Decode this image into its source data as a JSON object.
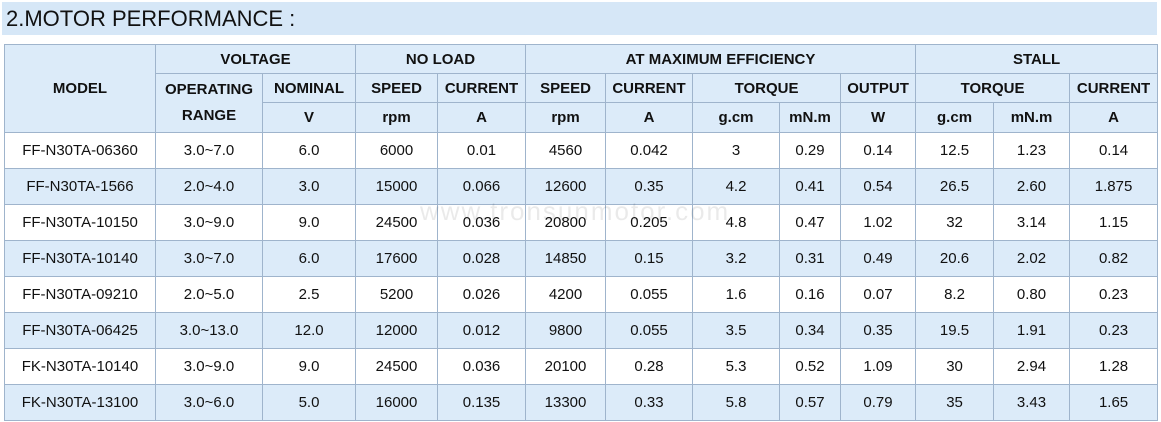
{
  "header": {
    "title": "2.MOTOR PERFORMANCE :"
  },
  "watermark": "www.tronsunmotor.com",
  "table": {
    "group_headers": [
      "MODEL",
      "VOLTAGE",
      "NO LOAD",
      "AT MAXIMUM EFFICIENCY",
      "STALL"
    ],
    "column_headers": [
      "OPERATING RANGE",
      "NOMINAL",
      "SPEED",
      "CURRENT",
      "SPEED",
      "CURRENT",
      "TORQUE",
      "OUTPUT",
      "TORQUE",
      "CURRENT"
    ],
    "units": [
      "V",
      "rpm",
      "A",
      "rpm",
      "A",
      "g.cm",
      "mN.m",
      "W",
      "g.cm",
      "mN.m",
      "A"
    ],
    "rows": [
      [
        "FF-N30TA-06360",
        "3.0~7.0",
        "6.0",
        "6000",
        "0.01",
        "4560",
        "0.042",
        "3",
        "0.29",
        "0.14",
        "12.5",
        "1.23",
        "0.14"
      ],
      [
        "FF-N30TA-1566",
        "2.0~4.0",
        "3.0",
        "15000",
        "0.066",
        "12600",
        "0.35",
        "4.2",
        "0.41",
        "0.54",
        "26.5",
        "2.60",
        "1.875"
      ],
      [
        "FF-N30TA-10150",
        "3.0~9.0",
        "9.0",
        "24500",
        "0.036",
        "20800",
        "0.205",
        "4.8",
        "0.47",
        "1.02",
        "32",
        "3.14",
        "1.15"
      ],
      [
        "FF-N30TA-10140",
        "3.0~7.0",
        "6.0",
        "17600",
        "0.028",
        "14850",
        "0.15",
        "3.2",
        "0.31",
        "0.49",
        "20.6",
        "2.02",
        "0.82"
      ],
      [
        "FF-N30TA-09210",
        "2.0~5.0",
        "2.5",
        "5200",
        "0.026",
        "4200",
        "0.055",
        "1.6",
        "0.16",
        "0.07",
        "8.2",
        "0.80",
        "0.23"
      ],
      [
        "FF-N30TA-06425",
        "3.0~13.0",
        "12.0",
        "12000",
        "0.012",
        "9800",
        "0.055",
        "3.5",
        "0.34",
        "0.35",
        "19.5",
        "1.91",
        "0.23"
      ],
      [
        "FK-N30TA-10140",
        "3.0~9.0",
        "9.0",
        "24500",
        "0.036",
        "20100",
        "0.28",
        "5.3",
        "0.52",
        "1.09",
        "30",
        "2.94",
        "1.28"
      ],
      [
        "FK-N30TA-13100",
        "3.0~6.0",
        "5.0",
        "16000",
        "0.135",
        "13300",
        "0.33",
        "5.8",
        "0.57",
        "0.79",
        "35",
        "3.43",
        "1.65"
      ]
    ]
  }
}
